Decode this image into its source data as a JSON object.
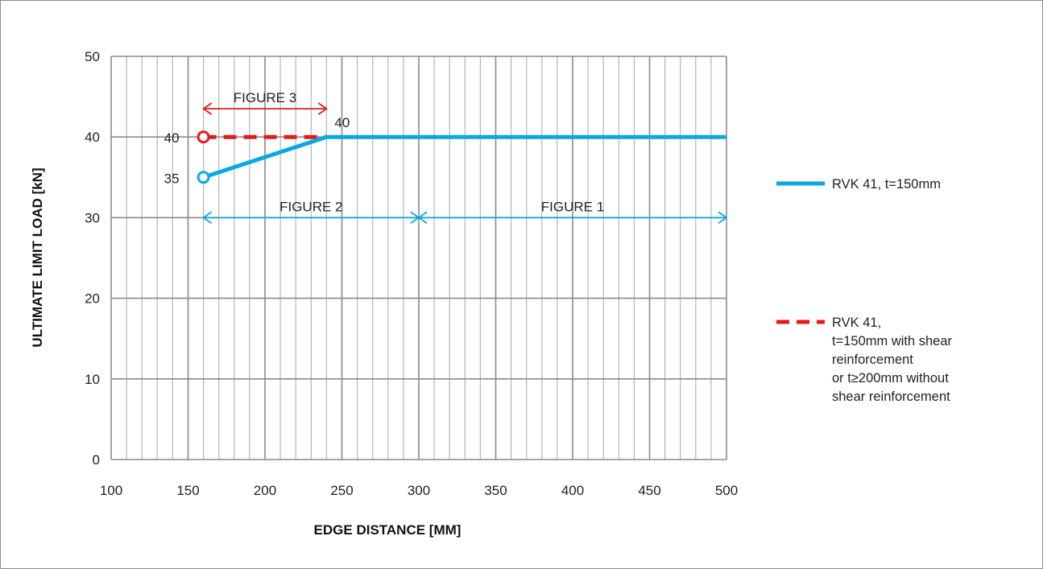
{
  "colors": {
    "series_blue": "#0aa9e0",
    "series_red": "#e31b1b",
    "grid_major": "#8a8a8a",
    "grid_minor": "#b5b5b5"
  },
  "chart_data": {
    "type": "line",
    "xlabel": "EDGE DISTANCE [MM]",
    "ylabel": "ULTIMATE LIMIT LOAD [kN]",
    "xlim": [
      100,
      500
    ],
    "ylim": [
      0,
      50
    ],
    "x_ticks": [
      "100",
      "150",
      "200",
      "250",
      "300",
      "350",
      "400",
      "450",
      "500"
    ],
    "y_ticks": [
      "0",
      "10",
      "20",
      "30",
      "40",
      "50"
    ],
    "x_minor_step": 10,
    "grid": true,
    "legend_position": "right",
    "series": [
      {
        "name": "RVK 41, t=150mm",
        "style": "solid",
        "color": "#0aa9e0",
        "x": [
          160,
          240,
          500
        ],
        "y": [
          35,
          40,
          40
        ]
      },
      {
        "name": "RVK 41,\nt=150mm with shear\nreinforcement\nor t≥200mm without\nshear reinforcement",
        "legend_lines": [
          "RVK 41,",
          "t=150mm with shear",
          "reinforcement",
          "or t≥200mm without",
          "shear reinforcement"
        ],
        "style": "dashed",
        "color": "#e31b1b",
        "x": [
          160,
          240
        ],
        "y": [
          40,
          40
        ]
      }
    ],
    "point_labels": [
      {
        "text": "40",
        "x": 160,
        "y": 40,
        "series": 1
      },
      {
        "text": "35",
        "x": 160,
        "y": 35,
        "series": 0
      },
      {
        "text": "40",
        "x": 240,
        "y": 40,
        "series": 0
      }
    ],
    "annotations": [
      {
        "text": "FIGURE 3",
        "x_from": 160,
        "x_to": 240,
        "y": 43.5,
        "color": "#e31b1b"
      },
      {
        "text": "FIGURE 2",
        "x_from": 160,
        "x_to": 300,
        "y": 30,
        "color": "#0aa9e0"
      },
      {
        "text": "FIGURE 1",
        "x_from": 300,
        "x_to": 500,
        "y": 30,
        "color": "#0aa9e0"
      }
    ]
  }
}
